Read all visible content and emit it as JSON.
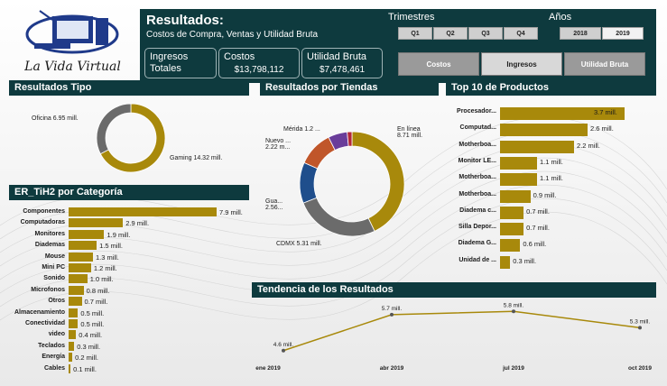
{
  "brand": {
    "name": "La Vida Virtual",
    "logo_icon": "computer-logo-icon"
  },
  "header": {
    "title": "Resultados:",
    "subtitle": "Costos de Compra, Ventas y Utilidad Bruta",
    "kpis": [
      {
        "label": "Ingresos Totales",
        "value": ""
      },
      {
        "label": "Costos",
        "value": "$13,798,112"
      },
      {
        "label": "Utilidad Bruta",
        "value": "$7,478,461"
      }
    ]
  },
  "slicers": {
    "trimestres_label": "Trimestres",
    "trimestres": [
      "Q1",
      "Q2",
      "Q3",
      "Q4"
    ],
    "anos_label": "Años",
    "anos": [
      "2018",
      "2019"
    ],
    "anos_selected": "2019"
  },
  "tabs": {
    "items": [
      "Costos",
      "Ingresos",
      "Utilidad Bruta"
    ],
    "selected": "Ingresos"
  },
  "colors": {
    "accent": "#a8890b",
    "header": "#0e3a3e",
    "grey": "#6b6b6b",
    "blue": "#1f4e8c",
    "orange": "#c0562a",
    "purple": "#6a3d9a",
    "red": "#b5283a"
  },
  "panels": {
    "tipo": "Resultados Tipo",
    "categoria": "ER_TiH2 por Categoría",
    "tiendas": "Resultados por Tiendas",
    "top10": "Top 10 de Productos",
    "tendencia": "Tendencia de los Resultados"
  },
  "chart_data": [
    {
      "type": "pie",
      "title": "Resultados Tipo",
      "labels": [
        "Gaming",
        "Oficina"
      ],
      "values": [
        14.32,
        6.95
      ],
      "value_labels": [
        "Gaming 14.32 mill.",
        "Oficina 6.95 mill."
      ]
    },
    {
      "type": "pie",
      "title": "Resultados por Tiendas",
      "labels": [
        "En línea",
        "CDMX",
        "Gua...",
        "Nuevo ...",
        "Mérida",
        "other"
      ],
      "values": [
        8.71,
        5.31,
        2.56,
        2.22,
        1.2,
        0.3
      ],
      "value_labels": [
        "En línea 8.71 mill.",
        "CDMX 5.31 mill.",
        "Gua... 2.56...",
        "Nuevo ... 2.22 m...",
        "Mérida 1.2 ...",
        ""
      ]
    },
    {
      "type": "bar",
      "title": "ER_TiH2 por Categoría",
      "categories": [
        "Componentes",
        "Computadoras",
        "Monitores",
        "Diademas",
        "Mouse",
        "Mini PC",
        "Sonido",
        "Microfonos",
        "Otros",
        "Almacenamiento",
        "Conectividad",
        "video",
        "Teclados",
        "Energía",
        "Cables"
      ],
      "values": [
        7.9,
        2.9,
        1.9,
        1.5,
        1.3,
        1.2,
        1.0,
        0.8,
        0.7,
        0.5,
        0.5,
        0.4,
        0.3,
        0.2,
        0.1
      ],
      "value_labels": [
        "7.9 mill.",
        "2.9 mill.",
        "1.9 mill.",
        "1.5 mill.",
        "1.3 mill.",
        "1.2 mill.",
        "1.0 mill.",
        "0.8 mill.",
        "0.7 mill.",
        "0.5 mill.",
        "0.5 mill.",
        "0.4 mill.",
        "0.3 mill.",
        "0.2 mill.",
        "0.1 mill."
      ]
    },
    {
      "type": "bar",
      "title": "Top 10 de Productos",
      "categories": [
        "Procesador...",
        "Computad...",
        "Motherboa...",
        "Monitor LE...",
        "Motherboa...",
        "Motherboa...",
        "Diadema c...",
        "Silla Depor...",
        "Diadema G...",
        "Unidad de ..."
      ],
      "values": [
        3.7,
        2.6,
        2.2,
        1.1,
        1.1,
        0.9,
        0.7,
        0.7,
        0.6,
        0.3
      ],
      "value_labels": [
        "3.7 mill.",
        "2.6 mill.",
        "2.2 mill.",
        "1.1 mill.",
        "1.1 mill.",
        "0.9 mill.",
        "0.7 mill.",
        "0.7 mill.",
        "0.6 mill.",
        "0.3 mill."
      ]
    },
    {
      "type": "line",
      "title": "Tendencia de los Resultados",
      "x": [
        "ene 2019",
        "abr 2019",
        "jul 2019",
        "oct 2019"
      ],
      "values": [
        4.6,
        5.7,
        5.8,
        5.3
      ],
      "value_labels": [
        "4.6 mill.",
        "5.7 mill.",
        "5.8 mill.",
        "5.3 mill."
      ]
    }
  ]
}
